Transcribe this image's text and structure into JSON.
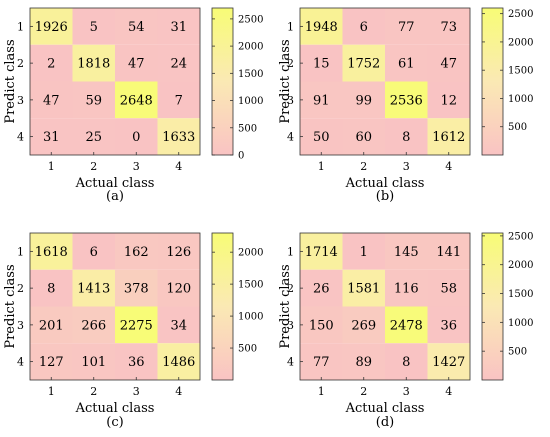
{
  "chart_data": [
    {
      "type": "heatmap",
      "caption": "(a)",
      "xlabel": "Actual class",
      "ylabel": "Predict class",
      "x_categories": [
        "1",
        "2",
        "3",
        "4"
      ],
      "y_categories": [
        "1",
        "2",
        "3",
        "4"
      ],
      "values": [
        [
          1926,
          5,
          54,
          31
        ],
        [
          2,
          1818,
          47,
          24
        ],
        [
          47,
          59,
          2648,
          7
        ],
        [
          31,
          25,
          0,
          1633
        ]
      ],
      "colorbar": {
        "range": [
          0,
          2700
        ],
        "ticks": [
          0,
          500,
          1000,
          1500,
          2000,
          2500
        ]
      }
    },
    {
      "type": "heatmap",
      "caption": "(b)",
      "xlabel": "Actual class",
      "ylabel": "Predict class",
      "x_categories": [
        "1",
        "2",
        "3",
        "4"
      ],
      "y_categories": [
        "1",
        "2",
        "3",
        "4"
      ],
      "values": [
        [
          1948,
          6,
          77,
          73
        ],
        [
          15,
          1752,
          61,
          47
        ],
        [
          91,
          99,
          2536,
          12
        ],
        [
          50,
          60,
          8,
          1612
        ]
      ],
      "colorbar": {
        "range": [
          0,
          2600
        ],
        "ticks": [
          500,
          1000,
          1500,
          2000,
          2500
        ]
      }
    },
    {
      "type": "heatmap",
      "caption": "(c)",
      "xlabel": "Actual class",
      "ylabel": "Predict class",
      "x_categories": [
        "1",
        "2",
        "3",
        "4"
      ],
      "y_categories": [
        "1",
        "2",
        "3",
        "4"
      ],
      "values": [
        [
          1618,
          6,
          162,
          126
        ],
        [
          8,
          1413,
          378,
          120
        ],
        [
          201,
          266,
          2275,
          34
        ],
        [
          127,
          101,
          36,
          1486
        ]
      ],
      "colorbar": {
        "range": [
          0,
          2300
        ],
        "ticks": [
          500,
          1000,
          1500,
          2000
        ]
      }
    },
    {
      "type": "heatmap",
      "caption": "(d)",
      "xlabel": "Actual class",
      "ylabel": "Predict class",
      "x_categories": [
        "1",
        "2",
        "3",
        "4"
      ],
      "y_categories": [
        "1",
        "2",
        "3",
        "4"
      ],
      "values": [
        [
          1714,
          1,
          145,
          141
        ],
        [
          26,
          1581,
          116,
          58
        ],
        [
          150,
          269,
          2478,
          36
        ],
        [
          77,
          89,
          8,
          1427
        ]
      ],
      "colorbar": {
        "range": [
          0,
          2550
        ],
        "ticks": [
          500,
          1000,
          1500,
          2000,
          2500
        ]
      }
    }
  ]
}
